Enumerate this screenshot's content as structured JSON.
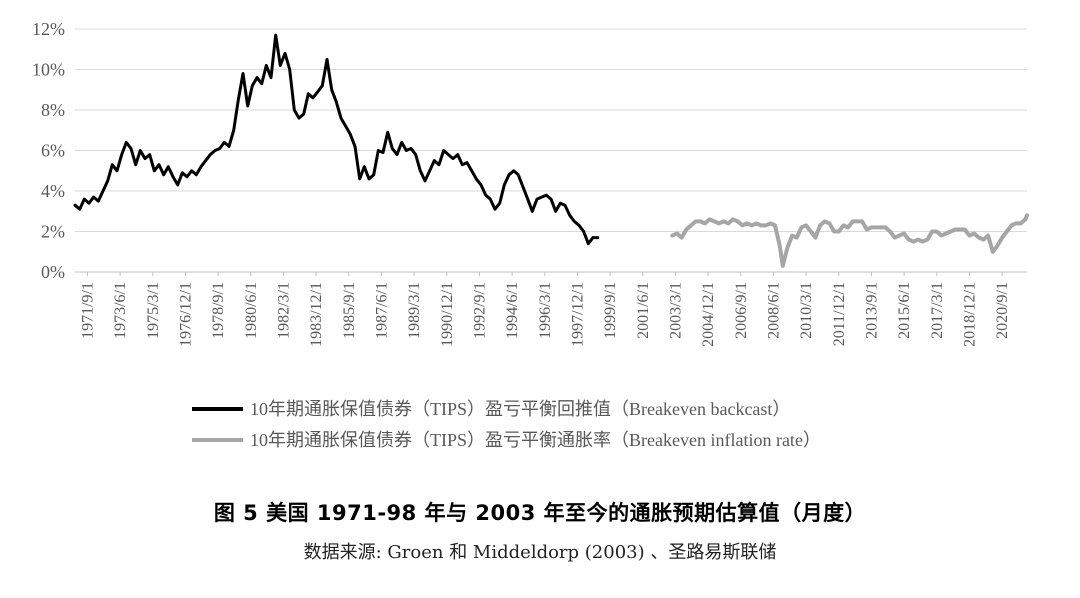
{
  "figure": {
    "title": "图 5 美国 1971-98 年与 2003 年至今的通胀预期估算值（月度）",
    "source": "数据来源: Groen 和 Middeldorp (2003) 、圣路易斯联储"
  },
  "chart_data": {
    "type": "line",
    "x_type": "monthly date",
    "x_range": [
      "1971/1",
      "2022/1"
    ],
    "ylim": [
      0,
      12
    ],
    "y_unit": "%",
    "yticks": [
      0,
      2,
      4,
      6,
      8,
      10,
      12
    ],
    "ytick_labels": [
      "0%",
      "2%",
      "4%",
      "6%",
      "8%",
      "10%",
      "12%"
    ],
    "xtick_labels": [
      "1971/9/1",
      "1973/6/1",
      "1975/3/1",
      "1976/12/1",
      "1978/9/1",
      "1980/6/1",
      "1982/3/1",
      "1983/12/1",
      "1985/9/1",
      "1987/6/1",
      "1989/3/1",
      "1990/12/1",
      "1992/9/1",
      "1994/6/1",
      "1996/3/1",
      "1997/12/1",
      "1999/9/1",
      "2001/6/1",
      "2003/3/1",
      "2004/12/1",
      "2006/9/1",
      "2008/6/1",
      "2010/3/1",
      "2011/12/1",
      "2013/9/1",
      "2015/6/1",
      "2017/3/1",
      "2018/12/1",
      "2020/9/1"
    ],
    "grid": "horizontal",
    "legend_position": "bottom",
    "series": [
      {
        "name": "10年期通胀保值债券（TIPS）盈亏平衡回推值（Breakeven backcast）",
        "color": "#000000",
        "points": [
          [
            "1971/1",
            3.3
          ],
          [
            "1971/4",
            3.1
          ],
          [
            "1971/7",
            3.6
          ],
          [
            "1971/10",
            3.4
          ],
          [
            "1972/1",
            3.7
          ],
          [
            "1972/4",
            3.5
          ],
          [
            "1972/7",
            4.0
          ],
          [
            "1972/10",
            4.5
          ],
          [
            "1973/1",
            5.3
          ],
          [
            "1973/4",
            5.0
          ],
          [
            "1973/7",
            5.8
          ],
          [
            "1973/10",
            6.4
          ],
          [
            "1974/1",
            6.1
          ],
          [
            "1974/4",
            5.3
          ],
          [
            "1974/7",
            6.0
          ],
          [
            "1974/10",
            5.6
          ],
          [
            "1975/1",
            5.8
          ],
          [
            "1975/4",
            5.0
          ],
          [
            "1975/7",
            5.3
          ],
          [
            "1975/10",
            4.8
          ],
          [
            "1976/1",
            5.2
          ],
          [
            "1976/4",
            4.7
          ],
          [
            "1976/7",
            4.3
          ],
          [
            "1976/10",
            4.9
          ],
          [
            "1977/1",
            4.7
          ],
          [
            "1977/4",
            5.0
          ],
          [
            "1977/7",
            4.8
          ],
          [
            "1977/10",
            5.2
          ],
          [
            "1978/1",
            5.5
          ],
          [
            "1978/4",
            5.8
          ],
          [
            "1978/7",
            6.0
          ],
          [
            "1978/10",
            6.1
          ],
          [
            "1979/1",
            6.4
          ],
          [
            "1979/4",
            6.2
          ],
          [
            "1979/7",
            7.0
          ],
          [
            "1979/10",
            8.5
          ],
          [
            "1980/1",
            9.8
          ],
          [
            "1980/4",
            8.2
          ],
          [
            "1980/7",
            9.2
          ],
          [
            "1980/10",
            9.6
          ],
          [
            "1981/1",
            9.3
          ],
          [
            "1981/4",
            10.2
          ],
          [
            "1981/7",
            9.6
          ],
          [
            "1981/10",
            11.7
          ],
          [
            "1982/1",
            10.2
          ],
          [
            "1982/4",
            10.8
          ],
          [
            "1982/7",
            10.0
          ],
          [
            "1982/10",
            8.0
          ],
          [
            "1983/1",
            7.6
          ],
          [
            "1983/4",
            7.8
          ],
          [
            "1983/7",
            8.8
          ],
          [
            "1983/10",
            8.6
          ],
          [
            "1984/1",
            8.9
          ],
          [
            "1984/4",
            9.2
          ],
          [
            "1984/7",
            10.5
          ],
          [
            "1984/10",
            9.0
          ],
          [
            "1985/1",
            8.4
          ],
          [
            "1985/4",
            7.6
          ],
          [
            "1985/7",
            7.2
          ],
          [
            "1985/10",
            6.8
          ],
          [
            "1986/1",
            6.2
          ],
          [
            "1986/4",
            4.6
          ],
          [
            "1986/7",
            5.2
          ],
          [
            "1986/10",
            4.6
          ],
          [
            "1987/1",
            4.8
          ],
          [
            "1987/4",
            6.0
          ],
          [
            "1987/7",
            5.9
          ],
          [
            "1987/10",
            6.9
          ],
          [
            "1988/1",
            6.1
          ],
          [
            "1988/4",
            5.8
          ],
          [
            "1988/7",
            6.4
          ],
          [
            "1988/10",
            6.0
          ],
          [
            "1989/1",
            6.1
          ],
          [
            "1989/4",
            5.8
          ],
          [
            "1989/7",
            5.0
          ],
          [
            "1989/10",
            4.5
          ],
          [
            "1990/1",
            5.0
          ],
          [
            "1990/4",
            5.5
          ],
          [
            "1990/7",
            5.3
          ],
          [
            "1990/10",
            6.0
          ],
          [
            "1991/1",
            5.8
          ],
          [
            "1991/4",
            5.6
          ],
          [
            "1991/7",
            5.8
          ],
          [
            "1991/10",
            5.3
          ],
          [
            "1992/1",
            5.4
          ],
          [
            "1992/4",
            5.0
          ],
          [
            "1992/7",
            4.6
          ],
          [
            "1992/10",
            4.3
          ],
          [
            "1993/1",
            3.8
          ],
          [
            "1993/4",
            3.6
          ],
          [
            "1993/7",
            3.1
          ],
          [
            "1993/10",
            3.4
          ],
          [
            "1994/1",
            4.3
          ],
          [
            "1994/4",
            4.8
          ],
          [
            "1994/7",
            5.0
          ],
          [
            "1994/10",
            4.8
          ],
          [
            "1995/1",
            4.2
          ],
          [
            "1995/4",
            3.6
          ],
          [
            "1995/7",
            3.0
          ],
          [
            "1995/10",
            3.6
          ],
          [
            "1996/1",
            3.7
          ],
          [
            "1996/4",
            3.8
          ],
          [
            "1996/7",
            3.6
          ],
          [
            "1996/10",
            3.0
          ],
          [
            "1997/1",
            3.4
          ],
          [
            "1997/4",
            3.3
          ],
          [
            "1997/7",
            2.8
          ],
          [
            "1997/10",
            2.5
          ],
          [
            "1998/1",
            2.3
          ],
          [
            "1998/4",
            2.0
          ],
          [
            "1998/7",
            1.4
          ],
          [
            "1998/10",
            1.7
          ],
          [
            "1999/1",
            1.7
          ]
        ]
      },
      {
        "name": "10年期通胀保值债券（TIPS）盈亏平衡通胀率（Breakeven inflation rate）",
        "color": "#a6a6a6",
        "points": [
          [
            "2003/1",
            1.8
          ],
          [
            "2003/4",
            1.9
          ],
          [
            "2003/7",
            1.7
          ],
          [
            "2003/10",
            2.1
          ],
          [
            "2004/1",
            2.3
          ],
          [
            "2004/4",
            2.5
          ],
          [
            "2004/7",
            2.5
          ],
          [
            "2004/10",
            2.4
          ],
          [
            "2005/1",
            2.6
          ],
          [
            "2005/4",
            2.5
          ],
          [
            "2005/7",
            2.4
          ],
          [
            "2005/10",
            2.5
          ],
          [
            "2006/1",
            2.4
          ],
          [
            "2006/4",
            2.6
          ],
          [
            "2006/7",
            2.5
          ],
          [
            "2006/10",
            2.3
          ],
          [
            "2007/1",
            2.4
          ],
          [
            "2007/4",
            2.3
          ],
          [
            "2007/7",
            2.4
          ],
          [
            "2007/10",
            2.3
          ],
          [
            "2008/1",
            2.3
          ],
          [
            "2008/4",
            2.4
          ],
          [
            "2008/7",
            2.3
          ],
          [
            "2008/10",
            1.3
          ],
          [
            "2008/12",
            0.3
          ],
          [
            "2009/3",
            1.2
          ],
          [
            "2009/6",
            1.8
          ],
          [
            "2009/9",
            1.7
          ],
          [
            "2009/12",
            2.2
          ],
          [
            "2010/3",
            2.3
          ],
          [
            "2010/6",
            2.0
          ],
          [
            "2010/9",
            1.7
          ],
          [
            "2010/12",
            2.3
          ],
          [
            "2011/3",
            2.5
          ],
          [
            "2011/6",
            2.4
          ],
          [
            "2011/9",
            2.0
          ],
          [
            "2011/12",
            2.0
          ],
          [
            "2012/3",
            2.3
          ],
          [
            "2012/6",
            2.2
          ],
          [
            "2012/9",
            2.5
          ],
          [
            "2012/12",
            2.5
          ],
          [
            "2013/3",
            2.5
          ],
          [
            "2013/6",
            2.1
          ],
          [
            "2013/9",
            2.2
          ],
          [
            "2013/12",
            2.2
          ],
          [
            "2014/3",
            2.2
          ],
          [
            "2014/6",
            2.2
          ],
          [
            "2014/9",
            2.0
          ],
          [
            "2014/12",
            1.7
          ],
          [
            "2015/3",
            1.8
          ],
          [
            "2015/6",
            1.9
          ],
          [
            "2015/9",
            1.6
          ],
          [
            "2015/12",
            1.5
          ],
          [
            "2016/3",
            1.6
          ],
          [
            "2016/6",
            1.5
          ],
          [
            "2016/9",
            1.6
          ],
          [
            "2016/12",
            2.0
          ],
          [
            "2017/3",
            2.0
          ],
          [
            "2017/6",
            1.8
          ],
          [
            "2017/9",
            1.9
          ],
          [
            "2017/12",
            2.0
          ],
          [
            "2018/3",
            2.1
          ],
          [
            "2018/6",
            2.1
          ],
          [
            "2018/9",
            2.1
          ],
          [
            "2018/12",
            1.8
          ],
          [
            "2019/3",
            1.9
          ],
          [
            "2019/6",
            1.7
          ],
          [
            "2019/9",
            1.6
          ],
          [
            "2019/12",
            1.8
          ],
          [
            "2020/3",
            1.0
          ],
          [
            "2020/6",
            1.3
          ],
          [
            "2020/9",
            1.7
          ],
          [
            "2020/12",
            2.0
          ],
          [
            "2021/3",
            2.3
          ],
          [
            "2021/6",
            2.4
          ],
          [
            "2021/9",
            2.4
          ],
          [
            "2021/12",
            2.6
          ],
          [
            "2022/1",
            2.8
          ]
        ]
      }
    ]
  }
}
